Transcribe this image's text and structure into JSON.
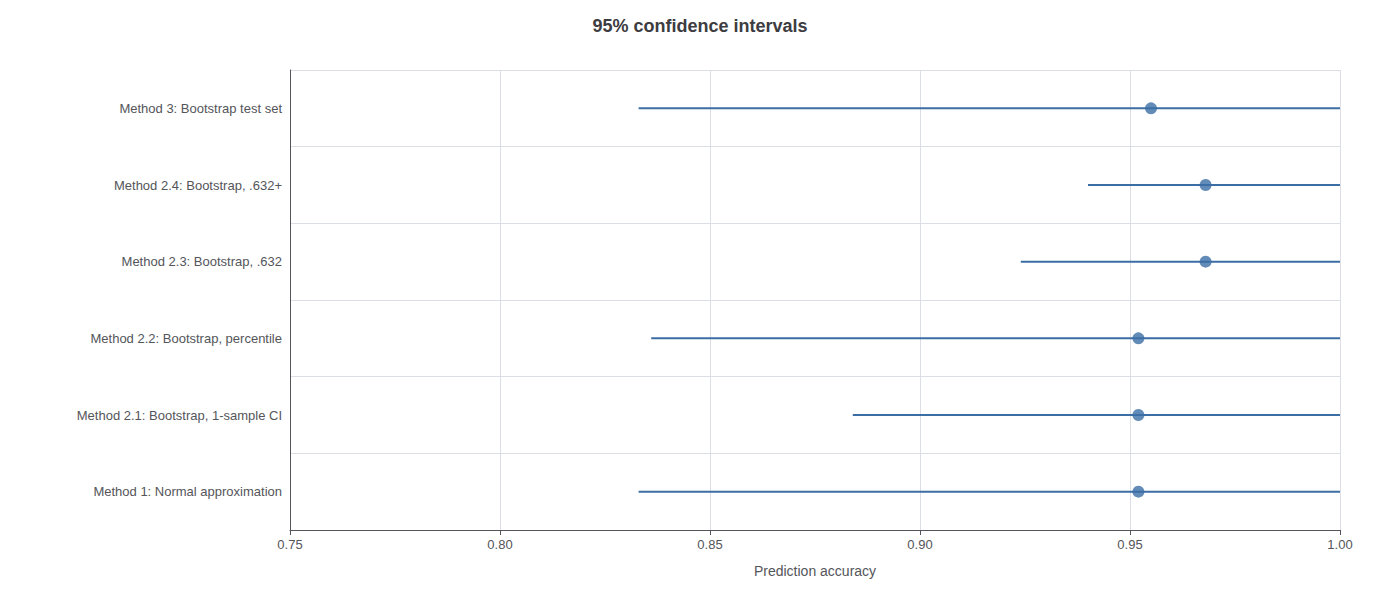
{
  "chart_data": {
    "type": "interval",
    "title": "95% confidence intervals",
    "xlabel": "Prediction accuracy",
    "orientation": "horizontal",
    "categories": [
      "Method 3: Bootstrap test set",
      "Method 2.4: Bootstrap, .632+",
      "Method 2.3: Bootstrap, .632",
      "Method 2.2: Bootstrap, percentile",
      "Method 2.1: Bootstrap, 1-sample CI",
      "Method 1: Normal approximation"
    ],
    "values": [
      0.955,
      0.968,
      0.968,
      0.952,
      0.952,
      0.952
    ],
    "ci_low": [
      0.833,
      0.94,
      0.924,
      0.836,
      0.884,
      0.833
    ],
    "ci_high": [
      1.0,
      1.0,
      1.0,
      1.0,
      1.0,
      1.0
    ],
    "color": "#3b6ea5",
    "marker": "circle",
    "xlim": [
      0.75,
      1.0
    ],
    "xticks": [
      0.75,
      {
        "value": 0.8,
        "label": "0.80"
      },
      0.85,
      {
        "value": 0.9,
        "label": "0.90"
      },
      0.95,
      {
        "value": 1.0,
        "label": "1.00"
      }
    ],
    "grid": true
  }
}
